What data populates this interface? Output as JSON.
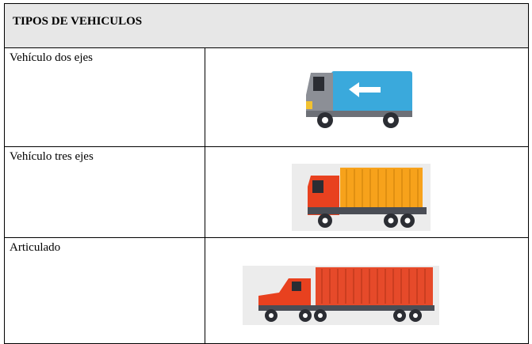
{
  "table": {
    "header": "TIPOS DE VEHICULOS",
    "rows": [
      [
        "Vehículo dos ejes"
      ],
      [
        "Vehículo tres ejes"
      ],
      [
        "Articulado"
      ]
    ]
  }
}
